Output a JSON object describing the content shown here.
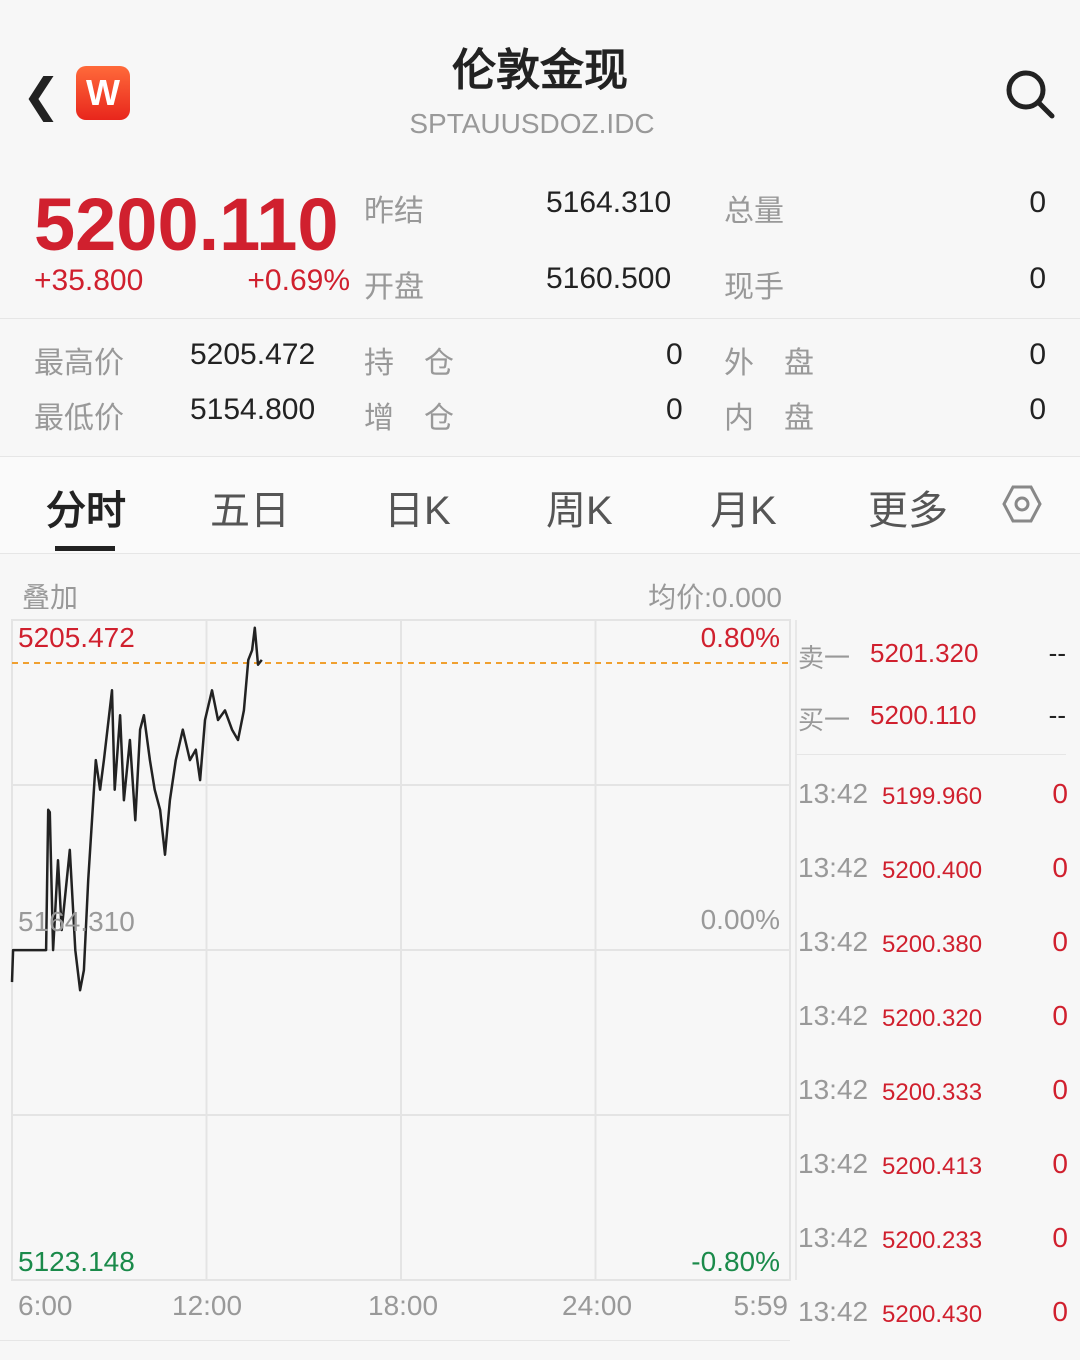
{
  "header": {
    "title": "伦敦金现",
    "code": "SPTAUUSDOZ.IDC",
    "logo": "W"
  },
  "quote": {
    "price": "5200.110",
    "change": "+35.800",
    "change_pct": "+0.69%",
    "prev_close_label": "昨结",
    "prev_close": "5164.310",
    "open_label": "开盘",
    "open": "5160.500",
    "volume_label": "总量",
    "volume": "0",
    "cur_hand_label": "现手",
    "cur_hand": "0",
    "high_label": "最高价",
    "high": "5205.472",
    "low_label": "最低价",
    "low": "5154.800",
    "oi_label": "持　仓",
    "oi": "0",
    "oi_chg_label": "增　仓",
    "oi_chg": "0",
    "outer_label": "外　盘",
    "outer": "0",
    "inner_label": "内　盘",
    "inner": "0"
  },
  "tabs": [
    "分时",
    "五日",
    "日K",
    "周K",
    "月K",
    "更多"
  ],
  "active_tab": 0,
  "chart_bar": {
    "overlay": "叠加",
    "avg": "均价:0.000"
  },
  "chart_data": {
    "type": "line",
    "y_labels": {
      "top": "5205.472",
      "mid": "5164.310",
      "bottom": "5123.148",
      "top_pct": "0.80%",
      "mid_pct": "0.00%",
      "bottom_pct": "-0.80%"
    },
    "ylim": [
      5123.148,
      5205.472
    ],
    "prev_close": 5164.31,
    "current": 5200.11,
    "x_ticks": [
      "6:00",
      "12:00",
      "18:00",
      "24:00",
      "5:59"
    ],
    "series": [
      [
        "6:00",
        5160.3
      ],
      [
        "6:02",
        5164.3
      ],
      [
        "7:03",
        5164.3
      ],
      [
        "7:07",
        5181.8
      ],
      [
        "7:10",
        5181.5
      ],
      [
        "7:16",
        5164.3
      ],
      [
        "7:25",
        5175.5
      ],
      [
        "7:32",
        5166.8
      ],
      [
        "7:47",
        5176.8
      ],
      [
        "7:57",
        5164.3
      ],
      [
        "8:06",
        5159.3
      ],
      [
        "8:13",
        5161.8
      ],
      [
        "8:21",
        5173.0
      ],
      [
        "8:28",
        5180.5
      ],
      [
        "8:35",
        5188.0
      ],
      [
        "8:43",
        5184.3
      ],
      [
        "8:50",
        5188.0
      ],
      [
        "9:05",
        5196.7
      ],
      [
        "9:10",
        5184.3
      ],
      [
        "9:20",
        5193.6
      ],
      [
        "9:27",
        5183.0
      ],
      [
        "9:38",
        5190.5
      ],
      [
        "9:48",
        5180.5
      ],
      [
        "9:57",
        5191.8
      ],
      [
        "10:04",
        5193.6
      ],
      [
        "10:15",
        5188.0
      ],
      [
        "10:24",
        5184.3
      ],
      [
        "10:34",
        5181.8
      ],
      [
        "10:43",
        5176.2
      ],
      [
        "10:52",
        5183.0
      ],
      [
        "11:03",
        5188.0
      ],
      [
        "11:16",
        5191.8
      ],
      [
        "11:29",
        5188.0
      ],
      [
        "11:40",
        5189.3
      ],
      [
        "11:48",
        5185.5
      ],
      [
        "11:57",
        5193.0
      ],
      [
        "12:10",
        5196.7
      ],
      [
        "12:21",
        5193.0
      ],
      [
        "12:34",
        5194.2
      ],
      [
        "12:47",
        5191.8
      ],
      [
        "12:58",
        5190.5
      ],
      [
        "13:09",
        5194.2
      ],
      [
        "13:17",
        5200.5
      ],
      [
        "13:24",
        5201.7
      ],
      [
        "13:29",
        5204.5
      ],
      [
        "13:35",
        5199.9
      ],
      [
        "13:42",
        5200.5
      ]
    ]
  },
  "book": [
    {
      "label": "卖一",
      "price": "5201.320",
      "vol": "--"
    },
    {
      "label": "买一",
      "price": "5200.110",
      "vol": "--"
    }
  ],
  "ticks": [
    {
      "t": "13:42",
      "p": "5199.960",
      "v": "0"
    },
    {
      "t": "13:42",
      "p": "5200.400",
      "v": "0"
    },
    {
      "t": "13:42",
      "p": "5200.380",
      "v": "0"
    },
    {
      "t": "13:42",
      "p": "5200.320",
      "v": "0"
    },
    {
      "t": "13:42",
      "p": "5200.333",
      "v": "0"
    },
    {
      "t": "13:42",
      "p": "5200.413",
      "v": "0"
    },
    {
      "t": "13:42",
      "p": "5200.233",
      "v": "0"
    },
    {
      "t": "13:42",
      "p": "5200.430",
      "v": "0"
    }
  ],
  "colors": {
    "up": "#d0202e",
    "down": "#1a8a4a",
    "avg_line": "#f0a030"
  }
}
